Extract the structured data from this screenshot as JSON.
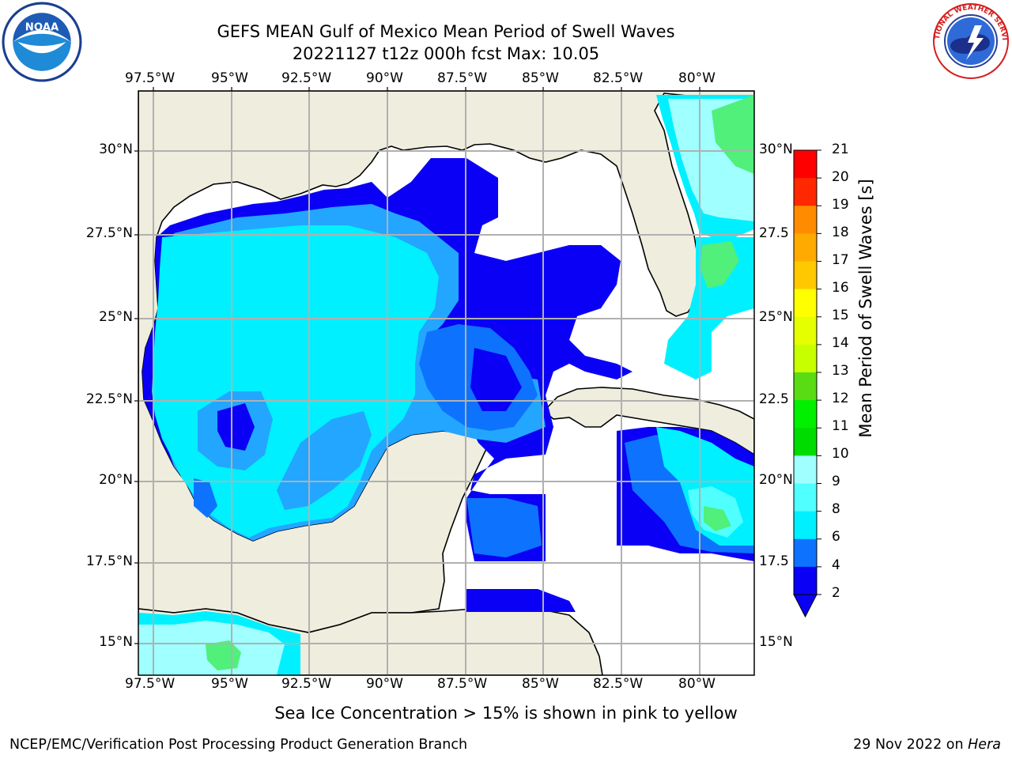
{
  "title": {
    "line1": "GEFS MEAN Gulf of Mexico Mean Period of Swell Waves",
    "line2": "20221127 t12z 000h fcst   Max: 10.05"
  },
  "logos": {
    "left": "noaa-logo",
    "left_text": "NOAA",
    "right": "nws-logo",
    "right_text": "NATIONAL WEATHER SERVICE"
  },
  "map": {
    "lon_ticks": [
      "97.5°W",
      "95°W",
      "92.5°W",
      "90°W",
      "87.5°W",
      "85°W",
      "82.5°W",
      "80°W"
    ],
    "lat_ticks_left": [
      "30°N",
      "27.5°N",
      "25°N",
      "22.5°N",
      "20°N",
      "17.5°N",
      "15°N"
    ],
    "lat_ticks_right": [
      "30°N",
      "27.5",
      "25°N",
      "22.5",
      "20°N",
      "17.5",
      "15°N"
    ],
    "extent": {
      "lon": [
        -98,
        -78.2
      ],
      "lat": [
        14,
        31.8
      ]
    },
    "colors": {
      "land": "#efedde",
      "ocean_nodata": "#ffffff",
      "grid": "#b0b0b0",
      "coast": "#000000"
    }
  },
  "colorbar": {
    "title": "Mean Period of Swell Waves [s]",
    "ticks": [
      "21",
      "20",
      "19",
      "18",
      "17",
      "16",
      "15",
      "14",
      "13",
      "12",
      "11",
      "10",
      "9",
      "8",
      "6",
      "4",
      "2"
    ],
    "levels": [
      2,
      4,
      6,
      8,
      9,
      10,
      11,
      12,
      13,
      14,
      15,
      16,
      17,
      18,
      19,
      20,
      21
    ],
    "colors": [
      "#0a00f5",
      "#0d73ff",
      "#23a6ff",
      "#00f0ff",
      "#50ffff",
      "#a0ffff",
      "#50f07a",
      "#00dc00",
      "#00f000",
      "#5adc14",
      "#a0e632",
      "#c8ff00",
      "#e6ff00",
      "#ffff00",
      "#ffe600",
      "#ffc800",
      "#ffaa00",
      "#ff8c00",
      "#ff5a00",
      "#ff2800",
      "#ff0000"
    ],
    "under_color": "#0a00f5"
  },
  "note": "Sea Ice Concentration > 15% is shown in pink to yellow",
  "footer": {
    "left": "NCEP/EMC/Verification Post Processing Product Generation Branch",
    "right_prefix": "29 Nov 2022 on ",
    "right_host": "Hera"
  }
}
